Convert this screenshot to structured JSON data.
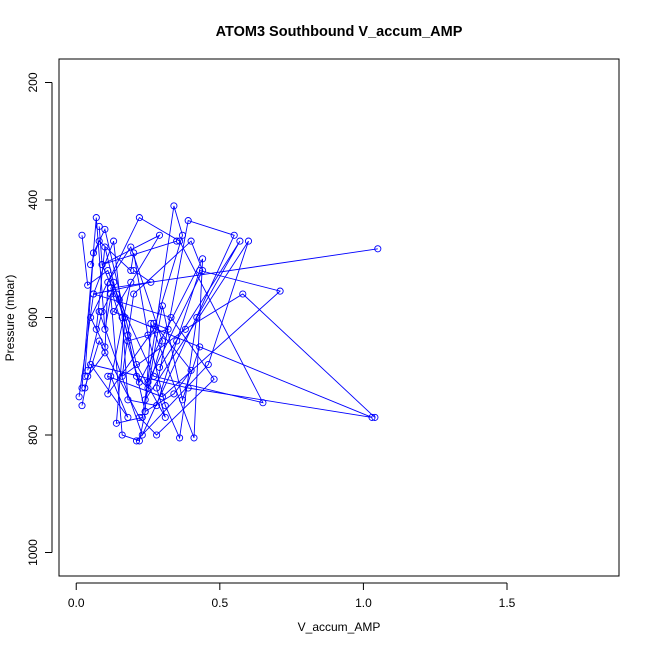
{
  "chart_data": {
    "type": "line",
    "title": "ATOM3 Southbound V_accum_AMP",
    "xlabel": "V_accum_AMP",
    "ylabel": "Pressure (mbar)",
    "xlim": [
      -0.06,
      1.89
    ],
    "ylim": [
      1040,
      160
    ],
    "y_reversed": true,
    "x_ticks": [
      0.0,
      0.5,
      1.0,
      1.5
    ],
    "x_tick_labels": [
      "0.0",
      "0.5",
      "1.0",
      "1.5"
    ],
    "y_ticks": [
      200,
      400,
      600,
      800,
      1000
    ],
    "y_tick_labels": [
      "200",
      "400",
      "600",
      "800",
      "1000"
    ],
    "grid": false,
    "legend": "none",
    "series_color": "#0000ff",
    "marker": "open-circle",
    "series": [
      {
        "x": [
          0.03,
          0.08,
          0.22,
          0.28,
          0.48,
          0.33,
          0.06,
          0.26,
          0.2
        ],
        "y": [
          720,
          640,
          770,
          800,
          705,
          600,
          560,
          540,
          520
        ]
      },
      {
        "x": [
          0.12,
          0.18,
          0.05,
          0.39,
          1.03,
          0.13,
          0.29,
          0.09,
          0.35
        ],
        "y": [
          700,
          770,
          680,
          720,
          770,
          590,
          460,
          510,
          470
        ]
      },
      {
        "x": [
          0.07,
          0.1,
          0.14,
          0.27,
          0.65,
          0.36,
          0.22,
          0.05,
          0.1
        ],
        "y": [
          620,
          480,
          560,
          700,
          745,
          470,
          430,
          600,
          650
        ]
      },
      {
        "x": [
          0.25,
          0.44,
          0.4,
          0.2,
          0.16,
          0.38,
          0.58,
          1.04
        ],
        "y": [
          710,
          520,
          470,
          560,
          700,
          620,
          560,
          770
        ]
      },
      {
        "x": [
          0.02,
          0.04,
          0.1,
          0.11,
          0.19,
          0.3,
          0.24,
          0.6,
          0.46,
          0.21
        ],
        "y": [
          750,
          700,
          660,
          540,
          480,
          640,
          740,
          470,
          680,
          810
        ]
      },
      {
        "x": [
          0.01,
          0.06,
          0.13,
          0.16,
          0.18,
          0.28,
          0.35,
          0.43,
          0.71,
          0.3,
          0.11
        ],
        "y": [
          735,
          560,
          470,
          600,
          740,
          750,
          640,
          520,
          555,
          735,
          700
        ]
      },
      {
        "x": [
          0.08,
          0.09,
          0.17,
          0.14,
          0.23,
          0.34,
          0.37,
          0.27,
          0.11,
          0.19
        ],
        "y": [
          445,
          510,
          600,
          780,
          770,
          410,
          460,
          620,
          730,
          540
        ]
      },
      {
        "x": [
          0.02,
          0.04,
          0.11,
          0.15,
          0.24,
          0.26,
          0.41,
          0.44,
          0.22,
          0.12,
          1.05
        ],
        "y": [
          460,
          545,
          520,
          570,
          760,
          610,
          805,
          500,
          710,
          550,
          483
        ]
      },
      {
        "x": [
          0.03,
          0.06,
          0.1,
          0.21,
          0.31,
          0.28,
          0.39,
          0.55,
          0.23,
          0.08
        ],
        "y": [
          700,
          490,
          450,
          680,
          770,
          720,
          435,
          460,
          800,
          590
        ]
      },
      {
        "x": [
          0.05,
          0.08,
          0.19,
          0.2,
          0.25,
          0.31,
          0.36,
          0.42,
          0.57,
          0.29
        ],
        "y": [
          510,
          470,
          520,
          490,
          630,
          750,
          805,
          600,
          470,
          685
        ]
      },
      {
        "x": [
          0.04,
          0.09,
          0.12,
          0.16,
          0.22,
          0.24,
          0.34,
          0.4,
          0.27,
          0.32,
          0.18
        ],
        "y": [
          690,
          590,
          560,
          800,
          810,
          760,
          730,
          690,
          610,
          620,
          640
        ]
      },
      {
        "x": [
          0.02,
          0.07,
          0.1,
          0.13,
          0.18,
          0.21,
          0.25,
          0.3,
          0.37,
          0.43
        ],
        "y": [
          720,
          430,
          620,
          540,
          630,
          700,
          720,
          580,
          740,
          650
        ]
      }
    ]
  }
}
